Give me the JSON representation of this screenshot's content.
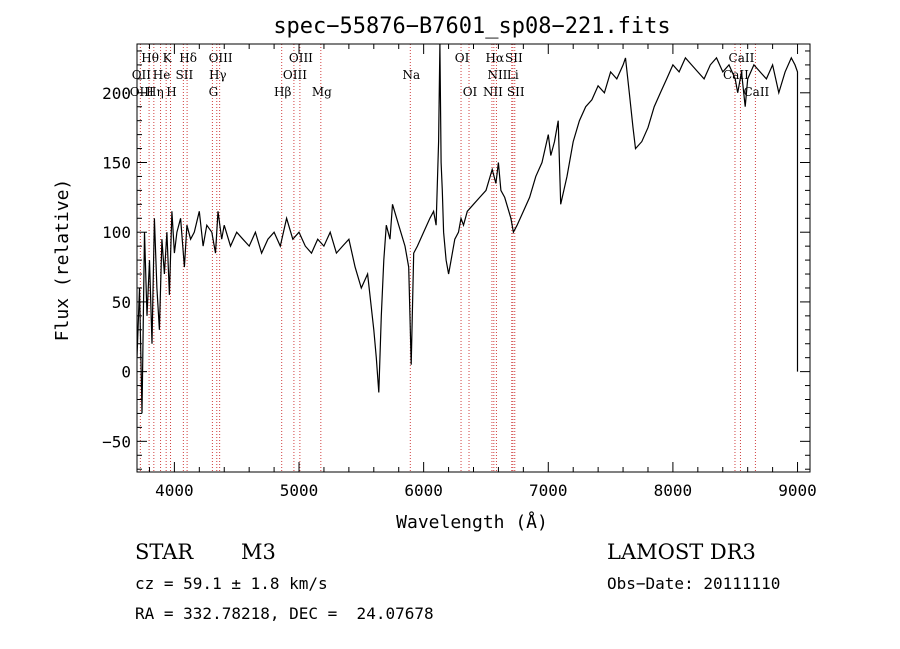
{
  "chart_data": {
    "type": "line",
    "title": "spec−55876−B7601_sp08−221.fits",
    "xlabel": "Wavelength (Å)",
    "ylabel": "Flux (relative)",
    "xlim": [
      3700,
      9100
    ],
    "ylim": [
      -72,
      235
    ],
    "xticks": [
      4000,
      5000,
      6000,
      7000,
      8000,
      9000
    ],
    "xtick_labels": [
      "4000",
      "5000",
      "6000",
      "7000",
      "8000",
      "9000"
    ],
    "yticks": [
      -50,
      0,
      50,
      100,
      150,
      200
    ],
    "ytick_labels": [
      "−50",
      "0",
      "50",
      "100",
      "150",
      "200"
    ],
    "grid": false,
    "series": [
      {
        "name": "flux",
        "x": [
          3700,
          3720,
          3740,
          3760,
          3780,
          3800,
          3820,
          3840,
          3860,
          3880,
          3900,
          3920,
          3940,
          3960,
          3980,
          4000,
          4020,
          4050,
          4080,
          4100,
          4130,
          4160,
          4200,
          4230,
          4260,
          4300,
          4330,
          4350,
          4380,
          4400,
          4450,
          4500,
          4550,
          4600,
          4650,
          4700,
          4750,
          4800,
          4850,
          4900,
          4950,
          5000,
          5050,
          5100,
          5150,
          5200,
          5250,
          5300,
          5350,
          5400,
          5450,
          5500,
          5550,
          5600,
          5620,
          5640,
          5660,
          5680,
          5700,
          5730,
          5750,
          5800,
          5850,
          5880,
          5900,
          5920,
          5950,
          6000,
          6050,
          6080,
          6100,
          6120,
          6130,
          6140,
          6150,
          6160,
          6180,
          6200,
          6220,
          6250,
          6280,
          6300,
          6320,
          6350,
          6400,
          6450,
          6500,
          6550,
          6580,
          6600,
          6620,
          6650,
          6700,
          6720,
          6750,
          6800,
          6850,
          6900,
          6950,
          7000,
          7020,
          7050,
          7080,
          7100,
          7150,
          7200,
          7250,
          7300,
          7350,
          7400,
          7450,
          7500,
          7550,
          7600,
          7620,
          7650,
          7680,
          7700,
          7750,
          7800,
          7850,
          7900,
          7950,
          8000,
          8050,
          8100,
          8150,
          8200,
          8250,
          8300,
          8350,
          8400,
          8450,
          8500,
          8520,
          8550,
          8580,
          8600,
          8650,
          8700,
          8750,
          8800,
          8850,
          8900,
          8950,
          8980,
          9000,
          9000
        ],
        "values": [
          10,
          60,
          -30,
          100,
          40,
          80,
          20,
          110,
          60,
          30,
          95,
          70,
          100,
          55,
          115,
          85,
          100,
          110,
          75,
          105,
          95,
          100,
          115,
          90,
          105,
          100,
          85,
          115,
          95,
          105,
          90,
          100,
          95,
          90,
          100,
          85,
          95,
          100,
          90,
          110,
          95,
          100,
          90,
          85,
          95,
          90,
          100,
          85,
          90,
          95,
          75,
          60,
          70,
          30,
          10,
          -15,
          40,
          80,
          105,
          95,
          120,
          105,
          90,
          75,
          5,
          85,
          90,
          100,
          110,
          115,
          105,
          165,
          235,
          150,
          130,
          100,
          80,
          70,
          80,
          95,
          100,
          110,
          105,
          115,
          120,
          125,
          130,
          145,
          135,
          150,
          130,
          125,
          110,
          100,
          105,
          115,
          125,
          140,
          150,
          170,
          155,
          165,
          180,
          120,
          140,
          165,
          180,
          190,
          195,
          205,
          200,
          215,
          210,
          220,
          225,
          200,
          175,
          160,
          165,
          175,
          190,
          200,
          210,
          220,
          215,
          225,
          220,
          215,
          210,
          220,
          225,
          215,
          220,
          210,
          200,
          215,
          190,
          210,
          220,
          215,
          210,
          220,
          200,
          215,
          225,
          220,
          215,
          0
        ]
      }
    ],
    "line_labels": [
      {
        "text": "Hθ",
        "x": 3797,
        "row": 1
      },
      {
        "text": "K",
        "x": 3934,
        "row": 1
      },
      {
        "text": "Hδ",
        "x": 4102,
        "row": 1
      },
      {
        "text": "OIII",
        "x": 4363,
        "row": 1
      },
      {
        "text": "OIII",
        "x": 5007,
        "row": 1
      },
      {
        "text": "OI",
        "x": 6300,
        "row": 1
      },
      {
        "text": "Hα",
        "x": 6563,
        "row": 1
      },
      {
        "text": "SII",
        "x": 6716,
        "row": 1
      },
      {
        "text": "CaII",
        "x": 8542,
        "row": 1
      },
      {
        "text": "OII",
        "x": 3727,
        "row": 2
      },
      {
        "text": "He",
        "x": 3889,
        "row": 2
      },
      {
        "text": "SII",
        "x": 4072,
        "row": 2
      },
      {
        "text": "Hγ",
        "x": 4340,
        "row": 2
      },
      {
        "text": "OIII",
        "x": 4959,
        "row": 2
      },
      {
        "text": "Na",
        "x": 5893,
        "row": 2
      },
      {
        "text": "NII",
        "x": 6584,
        "row": 2
      },
      {
        "text": "Li",
        "x": 6707,
        "row": 2
      },
      {
        "text": "CaII",
        "x": 8498,
        "row": 2
      },
      {
        "text": "OIII",
        "x": 3730,
        "row": 3
      },
      {
        "text": "Hη",
        "x": 3835,
        "row": 3
      },
      {
        "text": "H",
        "x": 3969,
        "row": 3
      },
      {
        "text": "G",
        "x": 4305,
        "row": 3
      },
      {
        "text": "Hβ",
        "x": 4861,
        "row": 3
      },
      {
        "text": "Mg",
        "x": 5175,
        "row": 3
      },
      {
        "text": "OI",
        "x": 6364,
        "row": 3
      },
      {
        "text": "NII",
        "x": 6548,
        "row": 3
      },
      {
        "text": "SII",
        "x": 6731,
        "row": 3
      },
      {
        "text": "CaII",
        "x": 8662,
        "row": 3
      }
    ],
    "line_marks": [
      3727,
      3797,
      3835,
      3889,
      3934,
      3969,
      4072,
      4102,
      4305,
      4340,
      4363,
      4861,
      4959,
      5007,
      5175,
      5893,
      6300,
      6364,
      6548,
      6563,
      6584,
      6707,
      6716,
      6731,
      8498,
      8542,
      8662
    ]
  },
  "info": {
    "object_type": "STAR",
    "subclass": "M3",
    "survey": "LAMOST DR3",
    "cz": "cz = 59.1 ± 1.8 km/s",
    "obs_date": "Obs−Date: 20111110",
    "coords": "RA = 332.78218, DEC =  24.07678"
  },
  "colors": {
    "line": "#000000",
    "marker": "#d04040",
    "axis": "#000000"
  }
}
